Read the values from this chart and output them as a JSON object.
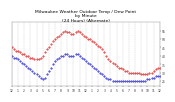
{
  "title": "Milwaukee Weather Outdoor Temp / Dew Point\nby Minute\n(24 Hours) (Alternate)",
  "bg_color": "#ffffff",
  "plot_bg_color": "#ffffff",
  "grid_color": "#aaaaaa",
  "red_color": "#dd0000",
  "blue_color": "#0000cc",
  "ylim": [
    22,
    60
  ],
  "xlim": [
    0,
    1440
  ],
  "yticks": [
    25,
    30,
    35,
    40,
    45,
    50,
    55
  ],
  "xtick_interval": 60,
  "title_color": "#000000",
  "title_fontsize": 3.2,
  "tick_fontsize": 2.2,
  "tick_color": "#333333",
  "temp_data": [
    [
      0,
      45
    ],
    [
      20,
      44
    ],
    [
      40,
      43
    ],
    [
      60,
      43
    ],
    [
      80,
      42
    ],
    [
      100,
      41
    ],
    [
      120,
      41
    ],
    [
      140,
      40
    ],
    [
      160,
      40
    ],
    [
      180,
      39
    ],
    [
      200,
      39
    ],
    [
      220,
      38
    ],
    [
      240,
      38
    ],
    [
      260,
      38
    ],
    [
      280,
      39
    ],
    [
      300,
      40
    ],
    [
      320,
      42
    ],
    [
      340,
      44
    ],
    [
      360,
      45
    ],
    [
      380,
      47
    ],
    [
      400,
      49
    ],
    [
      420,
      50
    ],
    [
      440,
      51
    ],
    [
      460,
      52
    ],
    [
      480,
      53
    ],
    [
      500,
      54
    ],
    [
      520,
      55
    ],
    [
      540,
      54
    ],
    [
      560,
      54
    ],
    [
      580,
      53
    ],
    [
      600,
      53
    ],
    [
      620,
      54
    ],
    [
      640,
      55
    ],
    [
      660,
      54
    ],
    [
      680,
      53
    ],
    [
      700,
      52
    ],
    [
      720,
      51
    ],
    [
      740,
      50
    ],
    [
      760,
      50
    ],
    [
      780,
      49
    ],
    [
      800,
      48
    ],
    [
      820,
      47
    ],
    [
      840,
      46
    ],
    [
      860,
      45
    ],
    [
      880,
      44
    ],
    [
      900,
      42
    ],
    [
      920,
      40
    ],
    [
      940,
      38
    ],
    [
      960,
      37
    ],
    [
      980,
      36
    ],
    [
      1000,
      35
    ],
    [
      1020,
      34
    ],
    [
      1040,
      33
    ],
    [
      1060,
      33
    ],
    [
      1080,
      32
    ],
    [
      1100,
      31
    ],
    [
      1120,
      31
    ],
    [
      1140,
      30
    ],
    [
      1160,
      30
    ],
    [
      1180,
      30
    ],
    [
      1200,
      30
    ],
    [
      1220,
      30
    ],
    [
      1240,
      30
    ],
    [
      1260,
      29
    ],
    [
      1280,
      29
    ],
    [
      1300,
      29
    ],
    [
      1320,
      29
    ],
    [
      1340,
      30
    ],
    [
      1360,
      30
    ],
    [
      1380,
      31
    ],
    [
      1400,
      32
    ],
    [
      1420,
      33
    ],
    [
      1440,
      33
    ]
  ],
  "dew_data": [
    [
      0,
      40
    ],
    [
      20,
      39
    ],
    [
      40,
      39
    ],
    [
      60,
      38
    ],
    [
      80,
      37
    ],
    [
      100,
      36
    ],
    [
      120,
      35
    ],
    [
      140,
      34
    ],
    [
      160,
      33
    ],
    [
      180,
      32
    ],
    [
      200,
      31
    ],
    [
      220,
      30
    ],
    [
      240,
      29
    ],
    [
      260,
      28
    ],
    [
      280,
      27
    ],
    [
      300,
      26
    ],
    [
      320,
      27
    ],
    [
      340,
      29
    ],
    [
      360,
      31
    ],
    [
      380,
      33
    ],
    [
      400,
      35
    ],
    [
      420,
      37
    ],
    [
      440,
      38
    ],
    [
      460,
      39
    ],
    [
      480,
      40
    ],
    [
      500,
      40
    ],
    [
      520,
      41
    ],
    [
      540,
      41
    ],
    [
      560,
      40
    ],
    [
      580,
      40
    ],
    [
      600,
      40
    ],
    [
      620,
      41
    ],
    [
      640,
      41
    ],
    [
      660,
      40
    ],
    [
      680,
      39
    ],
    [
      700,
      38
    ],
    [
      720,
      37
    ],
    [
      740,
      36
    ],
    [
      760,
      35
    ],
    [
      780,
      34
    ],
    [
      800,
      33
    ],
    [
      820,
      32
    ],
    [
      840,
      31
    ],
    [
      860,
      30
    ],
    [
      880,
      29
    ],
    [
      900,
      28
    ],
    [
      920,
      27
    ],
    [
      940,
      26
    ],
    [
      960,
      26
    ],
    [
      980,
      25
    ],
    [
      1000,
      25
    ],
    [
      1020,
      25
    ],
    [
      1040,
      25
    ],
    [
      1060,
      25
    ],
    [
      1080,
      25
    ],
    [
      1100,
      25
    ],
    [
      1120,
      25
    ],
    [
      1140,
      25
    ],
    [
      1160,
      25
    ],
    [
      1180,
      25
    ],
    [
      1200,
      25
    ],
    [
      1220,
      25
    ],
    [
      1240,
      25
    ],
    [
      1260,
      25
    ],
    [
      1280,
      25
    ],
    [
      1300,
      25
    ],
    [
      1320,
      26
    ],
    [
      1340,
      26
    ],
    [
      1360,
      27
    ],
    [
      1380,
      27
    ],
    [
      1400,
      28
    ],
    [
      1420,
      28
    ],
    [
      1440,
      28
    ]
  ]
}
